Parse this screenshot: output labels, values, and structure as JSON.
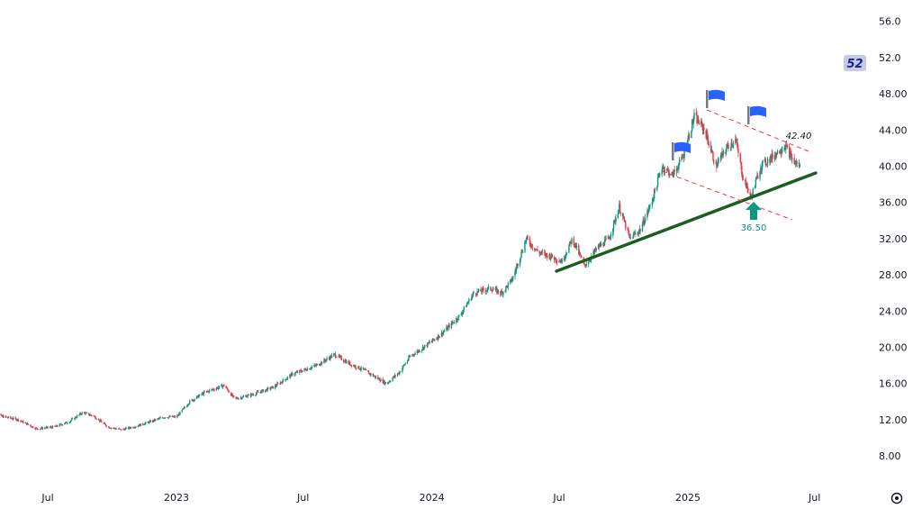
{
  "chart_data": {
    "type": "candlestick",
    "ylim": [
      6,
      58
    ],
    "y_ticks": [
      "8.00",
      "12.00",
      "16.00",
      "20.00",
      "24.00",
      "28.00",
      "32.00",
      "36.00",
      "40.00",
      "44.00",
      "48.00",
      "52.0",
      "56.0"
    ],
    "x_ticks": [
      "Jul",
      "2023",
      "Jul",
      "2024",
      "Jul",
      "2025",
      "Jul"
    ],
    "x_range": [
      "2022-04",
      "2025-08"
    ],
    "grid": false,
    "price_path": [
      [
        "2022-04-08",
        13.5
      ],
      [
        "2022-04-25",
        12.4
      ],
      [
        "2022-05-20",
        12.0
      ],
      [
        "2022-06-15",
        11.0
      ],
      [
        "2022-07-10",
        11.2
      ],
      [
        "2022-08-01",
        11.8
      ],
      [
        "2022-08-20",
        12.8
      ],
      [
        "2022-09-05",
        12.4
      ],
      [
        "2022-09-25",
        11.2
      ],
      [
        "2022-10-15",
        10.9
      ],
      [
        "2022-11-05",
        11.3
      ],
      [
        "2022-11-25",
        11.8
      ],
      [
        "2022-12-15",
        12.3
      ],
      [
        "2023-01-01",
        12.3
      ],
      [
        "2023-01-20",
        14.0
      ],
      [
        "2023-02-10",
        15.0
      ],
      [
        "2023-03-10",
        15.8
      ],
      [
        "2023-03-25",
        14.3
      ],
      [
        "2023-04-20",
        14.8
      ],
      [
        "2023-05-20",
        15.6
      ],
      [
        "2023-06-15",
        17.0
      ],
      [
        "2023-07-20",
        18.0
      ],
      [
        "2023-08-15",
        19.2
      ],
      [
        "2023-09-05",
        18.2
      ],
      [
        "2023-09-25",
        17.5
      ],
      [
        "2023-10-15",
        16.6
      ],
      [
        "2023-10-28",
        16.0
      ],
      [
        "2023-11-15",
        17.2
      ],
      [
        "2023-12-01",
        19.0
      ],
      [
        "2023-12-20",
        20.0
      ],
      [
        "2024-01-15",
        21.5
      ],
      [
        "2024-02-10",
        23.5
      ],
      [
        "2024-03-01",
        26.0
      ],
      [
        "2024-03-25",
        26.5
      ],
      [
        "2024-04-10",
        26.0
      ],
      [
        "2024-04-25",
        27.5
      ],
      [
        "2024-05-15",
        32.0
      ],
      [
        "2024-06-01",
        30.5
      ],
      [
        "2024-06-20",
        30.0
      ],
      [
        "2024-07-05",
        29.5
      ],
      [
        "2024-07-20",
        32.0
      ],
      [
        "2024-08-06",
        29.0
      ],
      [
        "2024-08-25",
        31.0
      ],
      [
        "2024-09-10",
        32.0
      ],
      [
        "2024-09-25",
        35.5
      ],
      [
        "2024-10-10",
        32.0
      ],
      [
        "2024-10-25",
        33.0
      ],
      [
        "2024-11-10",
        36.0
      ],
      [
        "2024-11-25",
        40.0
      ],
      [
        "2024-12-10",
        39.0
      ],
      [
        "2024-12-25",
        41.0
      ],
      [
        "2025-01-10",
        45.5
      ],
      [
        "2025-01-25",
        44.0
      ],
      [
        "2025-02-10",
        40.0
      ],
      [
        "2025-02-25",
        42.0
      ],
      [
        "2025-03-10",
        43.0
      ],
      [
        "2025-03-20",
        39.0
      ],
      [
        "2025-04-01",
        36.5
      ],
      [
        "2025-04-15",
        40.0
      ],
      [
        "2025-05-01",
        41.0
      ],
      [
        "2025-05-20",
        42.3
      ],
      [
        "2025-06-01",
        40.5
      ],
      [
        "2025-06-10",
        40.0
      ]
    ],
    "annotations": {
      "last_price_badge": "52",
      "top_label": "42.40",
      "low_label": "36.50"
    },
    "colors": {
      "up": "#089981",
      "down": "#f23645",
      "trendline": "#1b5e20",
      "channel": "#f23645",
      "flag": "#2962ff",
      "flag_pole": "#787b86",
      "arrow": "#089981",
      "badge_bg": "#c5cae9",
      "badge_text": "#1a237e"
    }
  },
  "ui": {
    "settings_icon": "gear-icon"
  }
}
